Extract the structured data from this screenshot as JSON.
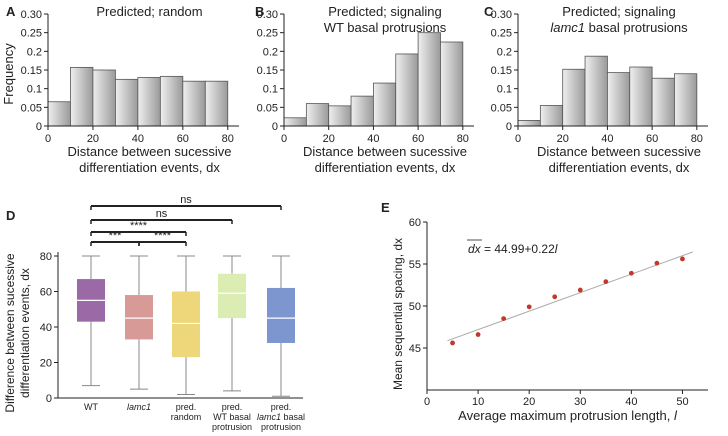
{
  "panel_letters": [
    "A",
    "B",
    "C",
    "D",
    "E"
  ],
  "colors": {
    "bar_light": "#eeeeee",
    "bar_dark": "#9a9a9a",
    "box_wt": "#9b6aa6",
    "box_lamc1": "#d79a96",
    "box_pred_random": "#eed77a",
    "box_pred_wt": "#dbedb2",
    "box_pred_lamc1": "#7d96cf",
    "scatter_point": "#c0392b",
    "fit_line": "#aaaaaa"
  },
  "chart_data": [
    {
      "panel": "A",
      "type": "bar",
      "title": "Predicted; random",
      "xlabel_lines": [
        "Distance between sucessive",
        "differentiation events, dx"
      ],
      "ylabel": "Frequency",
      "bin_edges": [
        0,
        10,
        20,
        30,
        40,
        50,
        60,
        70,
        80
      ],
      "values": [
        0.065,
        0.157,
        0.15,
        0.125,
        0.13,
        0.133,
        0.12,
        0.12
      ],
      "xlim": [
        0,
        85
      ],
      "ylim": [
        0,
        0.3
      ],
      "xticks": [
        0,
        20,
        40,
        60,
        80
      ],
      "yticks": [
        0,
        0.05,
        0.1,
        0.15,
        0.2,
        0.25,
        0.3
      ],
      "ytick_labels": [
        "0",
        "0.05",
        "0.1",
        "0.15",
        "0.2",
        "0.25",
        "0.30"
      ]
    },
    {
      "panel": "B",
      "type": "bar",
      "title_lines": [
        "Predicted; signaling",
        "WT basal protrusions"
      ],
      "xlabel_lines": [
        "Distance between sucessive",
        "differentiation events, dx"
      ],
      "bin_edges": [
        0,
        10,
        20,
        30,
        40,
        50,
        60,
        70,
        80
      ],
      "values": [
        0.022,
        0.06,
        0.054,
        0.08,
        0.115,
        0.193,
        0.25,
        0.225
      ],
      "xlim": [
        0,
        85
      ],
      "ylim": [
        0,
        0.3
      ],
      "xticks": [
        0,
        20,
        40,
        60,
        80
      ],
      "yticks": [
        0,
        0.05,
        0.1,
        0.15,
        0.2,
        0.25,
        0.3
      ],
      "ytick_labels": [
        "0",
        "0.05",
        "0.1",
        "0.15",
        "0.2",
        "0.25",
        "0.30"
      ]
    },
    {
      "panel": "C",
      "type": "bar",
      "title_lines": [
        "Predicted; signaling",
        "lamc1 basal protrusions"
      ],
      "xlabel_lines": [
        "Distance between sucessive",
        "differentiation events, dx"
      ],
      "bin_edges": [
        0,
        10,
        20,
        30,
        40,
        50,
        60,
        70,
        80
      ],
      "values": [
        0.015,
        0.055,
        0.152,
        0.187,
        0.143,
        0.158,
        0.128,
        0.14
      ],
      "xlim": [
        0,
        85
      ],
      "ylim": [
        0,
        0.3
      ],
      "xticks": [
        0,
        20,
        40,
        60,
        80
      ],
      "yticks": [
        0,
        0.05,
        0.1,
        0.15,
        0.2,
        0.25,
        0.3
      ],
      "ytick_labels": [
        "0",
        "0.05",
        "0.1",
        "0.15",
        "0.2",
        "0.25",
        "0.30"
      ]
    },
    {
      "panel": "D",
      "type": "box",
      "ylabel_lines": [
        "Difference between sucessive",
        "differentiation events, dx"
      ],
      "ylim": [
        0,
        80
      ],
      "yticks": [
        0,
        20,
        40,
        60,
        80
      ],
      "categories": [
        {
          "label_lines": [
            "WT"
          ],
          "italic": false,
          "color": "#9b6aa6",
          "min": 7,
          "q1": 43,
          "median": 55,
          "q3": 67,
          "max": 80
        },
        {
          "label_lines": [
            "lamc1"
          ],
          "italic": true,
          "color": "#d79a96",
          "min": 5,
          "q1": 33,
          "median": 45,
          "q3": 58,
          "max": 80
        },
        {
          "label_lines": [
            "pred.",
            "random"
          ],
          "italic": false,
          "color": "#eed77a",
          "min": 2,
          "q1": 23,
          "median": 42,
          "q3": 60,
          "max": 80
        },
        {
          "label_lines": [
            "pred.",
            "WT basal",
            "protrusion"
          ],
          "italic": false,
          "color": "#dbedb2",
          "min": 4,
          "q1": 45,
          "median": 59,
          "q3": 70,
          "max": 80
        },
        {
          "label_lines": [
            "pred.",
            "lamc1 basal",
            "protrusion"
          ],
          "italic_word": "lamc1",
          "color": "#7d96cf",
          "min": 1,
          "q1": 31,
          "median": 45,
          "q3": 62,
          "max": 80
        }
      ],
      "significance": [
        {
          "from": 0,
          "to": 4,
          "label": "ns"
        },
        {
          "from": 0,
          "to": 3,
          "label": "ns"
        },
        {
          "from": 0,
          "to": 2,
          "label": "****"
        },
        {
          "from": 0,
          "to": 1,
          "label": "***"
        },
        {
          "from": 1,
          "to": 2,
          "label": "****"
        }
      ]
    },
    {
      "panel": "E",
      "type": "scatter",
      "xlabel": "Average maximum protrusion length, ",
      "xlabel_var": "l",
      "ylabel": "Mean sequential spacing, dx",
      "equation": "= 44.99+0.22",
      "equation_lhs": "dx",
      "equation_var": "l",
      "xlim": [
        0,
        55
      ],
      "ylim": [
        40,
        60
      ],
      "xticks": [
        0,
        10,
        20,
        30,
        40,
        50
      ],
      "yticks": [
        45,
        50,
        55,
        60
      ],
      "x": [
        5,
        10,
        15,
        20,
        25,
        30,
        35,
        40,
        45,
        50
      ],
      "y": [
        45.6,
        46.6,
        48.5,
        49.9,
        51.1,
        51.9,
        52.9,
        53.9,
        55.1,
        55.6
      ],
      "fit": {
        "intercept": 44.99,
        "slope": 0.22
      }
    }
  ]
}
